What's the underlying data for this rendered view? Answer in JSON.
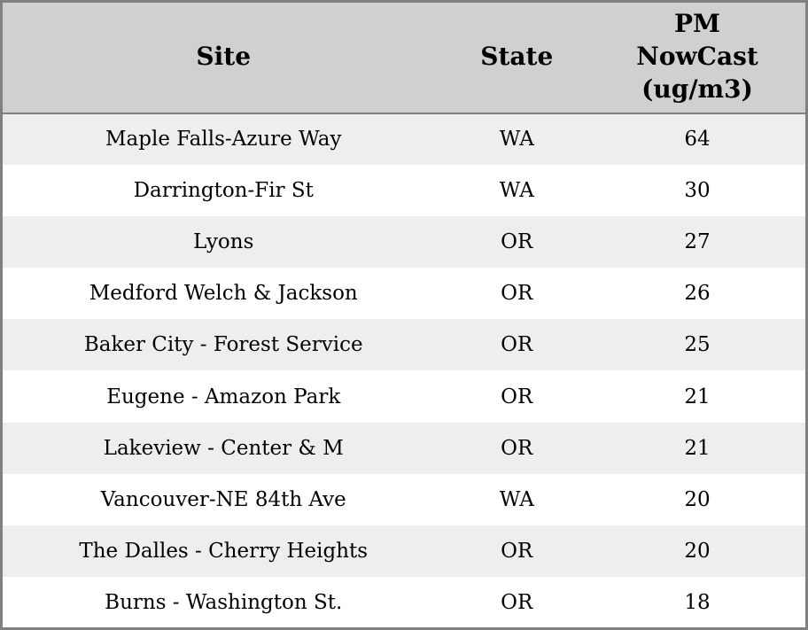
{
  "colors": {
    "header_background": "#d0d0d0",
    "border": "#808080",
    "row_alt_background": "#eeeeee",
    "row_background": "#ffffff",
    "text": "#000000"
  },
  "table": {
    "columns": [
      {
        "label": "Site"
      },
      {
        "label": "State"
      },
      {
        "label": "PM\nNowCast\n(ug/m3)"
      }
    ],
    "rows": [
      {
        "site": "Maple Falls-Azure Way",
        "state": "WA",
        "pm": "64"
      },
      {
        "site": "Darrington-Fir St",
        "state": "WA",
        "pm": "30"
      },
      {
        "site": "Lyons",
        "state": "OR",
        "pm": "27"
      },
      {
        "site": "Medford Welch & Jackson",
        "state": "OR",
        "pm": "26"
      },
      {
        "site": "Baker City - Forest Service",
        "state": "OR",
        "pm": "25"
      },
      {
        "site": "Eugene - Amazon Park",
        "state": "OR",
        "pm": "21"
      },
      {
        "site": "Lakeview - Center & M",
        "state": "OR",
        "pm": "21"
      },
      {
        "site": "Vancouver-NE 84th Ave",
        "state": "WA",
        "pm": "20"
      },
      {
        "site": "The Dalles - Cherry Heights",
        "state": "OR",
        "pm": "20"
      },
      {
        "site": "Burns - Washington St.",
        "state": "OR",
        "pm": "18"
      }
    ]
  }
}
